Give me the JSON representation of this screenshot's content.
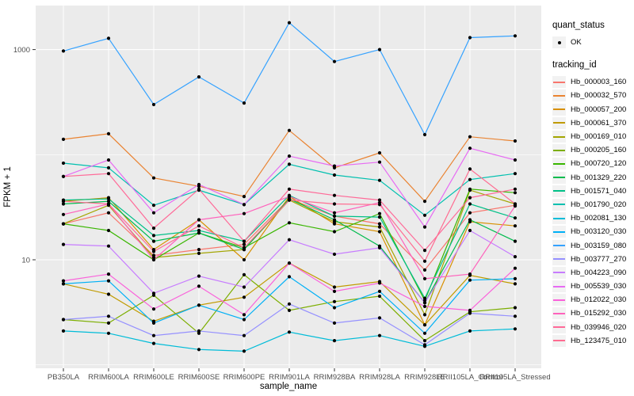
{
  "chart_data": {
    "type": "line",
    "title": "",
    "xlabel": "sample_name",
    "ylabel": "FPKM + 1",
    "y_scale": "log10",
    "y_tick_labels": [
      "1000",
      "10"
    ],
    "y_ticks": [
      1000,
      10
    ],
    "y_minor": [
      100,
      1
    ],
    "ylim_log": [
      0.93,
      2.65
    ],
    "grid": true,
    "legend_position": "right",
    "categories": [
      "PB350LA",
      "RRIM600LA",
      "RRIM600LE",
      "RRIM600SE",
      "RRIM600PE",
      "RRIM901LA",
      "RRIM928BA",
      "RRIM928LA",
      "RRIM928LE",
      "RRII105LA_Control",
      "RRII105LA_Stressed"
    ],
    "point_shape": "filled-black-point",
    "series": [
      {
        "id": "Hb_000003_160",
        "color": "#F8766D",
        "values": [
          22,
          28,
          11,
          12.5,
          14,
          38,
          26,
          22,
          8,
          28,
          33
        ]
      },
      {
        "id": "Hb_000032_570",
        "color": "#EA8331",
        "values": [
          140,
          158,
          60,
          50,
          40,
          170,
          75,
          104,
          36,
          148,
          135
        ]
      },
      {
        "id": "Hb_000057_200",
        "color": "#D89000",
        "values": [
          36,
          39,
          12.5,
          24,
          10,
          40,
          22,
          18.5,
          2.4,
          23,
          21
        ]
      },
      {
        "id": "Hb_000061_370",
        "color": "#C09B00",
        "values": [
          5.9,
          4.7,
          2.6,
          3.7,
          4.4,
          9.3,
          5.5,
          6.2,
          2.4,
          7.1,
          5.9
        ]
      },
      {
        "id": "Hb_000169_010",
        "color": "#A3A500",
        "values": [
          22,
          33,
          10.5,
          11.5,
          12.5,
          37,
          23,
          20.5,
          3.0,
          46,
          34
        ]
      },
      {
        "id": "Hb_000205_160",
        "color": "#7CAE00",
        "values": [
          2.7,
          2.5,
          4.6,
          2.0,
          7.2,
          3.3,
          4.0,
          4.5,
          1.7,
          3.2,
          3.5
        ]
      },
      {
        "id": "Hb_000720_120",
        "color": "#39B600",
        "values": [
          22,
          19,
          10,
          18,
          13,
          22.5,
          18.5,
          27.5,
          4.1,
          47,
          43.5
        ]
      },
      {
        "id": "Hb_001329_220",
        "color": "#00BB4E",
        "values": [
          34,
          36,
          15,
          18,
          12.5,
          38,
          24,
          13.5,
          3.9,
          24,
          15
        ]
      },
      {
        "id": "Hb_001571_040",
        "color": "#00C087",
        "values": [
          37,
          38,
          17,
          19,
          15,
          41,
          26,
          25.5,
          4.3,
          34,
          25
        ]
      },
      {
        "id": "Hb_001790_020",
        "color": "#00C0AF",
        "values": [
          83,
          75,
          33,
          46,
          33.5,
          81,
          64,
          57,
          26.5,
          58,
          66
        ]
      },
      {
        "id": "Hb_002081_130",
        "color": "#00BCD8",
        "values": [
          2.1,
          2.0,
          1.6,
          1.4,
          1.35,
          2.05,
          1.7,
          1.9,
          1.5,
          2.1,
          2.2
        ]
      },
      {
        "id": "Hb_003120_030",
        "color": "#00B0F6",
        "values": [
          5.9,
          6.3,
          2.5,
          3.7,
          2.7,
          6.9,
          3.5,
          5.0,
          2.0,
          6.4,
          6.6
        ]
      },
      {
        "id": "Hb_003159_080",
        "color": "#35A2FF",
        "values": [
          970,
          1280,
          300,
          550,
          310,
          1800,
          770,
          1000,
          155,
          1300,
          1350
        ]
      },
      {
        "id": "Hb_003777_270",
        "color": "#9590FF",
        "values": [
          2.7,
          2.9,
          1.9,
          2.1,
          1.9,
          3.8,
          2.5,
          2.8,
          1.55,
          3.1,
          2.9
        ]
      },
      {
        "id": "Hb_004223_090",
        "color": "#C77CFF",
        "values": [
          14,
          13.5,
          4.8,
          7.0,
          5.5,
          15.5,
          11.3,
          13,
          3.9,
          19,
          10.7
        ]
      },
      {
        "id": "Hb_005539_030",
        "color": "#E76BF3",
        "values": [
          62,
          89,
          28,
          52,
          33.5,
          97,
          78,
          85,
          20.5,
          115,
          89
        ]
      },
      {
        "id": "Hb_012022_030",
        "color": "#FA62DB",
        "values": [
          6.3,
          7.3,
          3.4,
          5.6,
          3.0,
          9.3,
          5.0,
          6.0,
          3.6,
          3.3,
          8.3
        ]
      },
      {
        "id": "Hb_015292_030",
        "color": "#FF62BC",
        "values": [
          27,
          34,
          10,
          24,
          27.5,
          40,
          28,
          35,
          6.6,
          7.3,
          32.5
        ]
      },
      {
        "id": "Hb_039946_020",
        "color": "#FF6A98",
        "values": [
          62,
          66,
          20,
          47,
          15,
          47,
          41,
          37,
          12.3,
          39,
          47
        ]
      },
      {
        "id": "Hb_123475_010",
        "color": "#FF6C91",
        "values": [
          36,
          34,
          12,
          21,
          13,
          37,
          34,
          33.5,
          9.7,
          73,
          34
        ]
      }
    ],
    "legend": {
      "quant_status_title": "quant_status",
      "quant_status_items": [
        {
          "label": "OK",
          "symbol": "black-point"
        }
      ],
      "tracking_title": "tracking_id"
    },
    "style": {
      "panel_bg": "#EBEBEB",
      "grid_color": "#FFFFFF",
      "point_color": "#000000",
      "tick_color": "#333333",
      "tick_label_color": "#4D4D4D",
      "axis_title_color": "#000000",
      "legend_key_bg": "#F2F2F2"
    }
  }
}
